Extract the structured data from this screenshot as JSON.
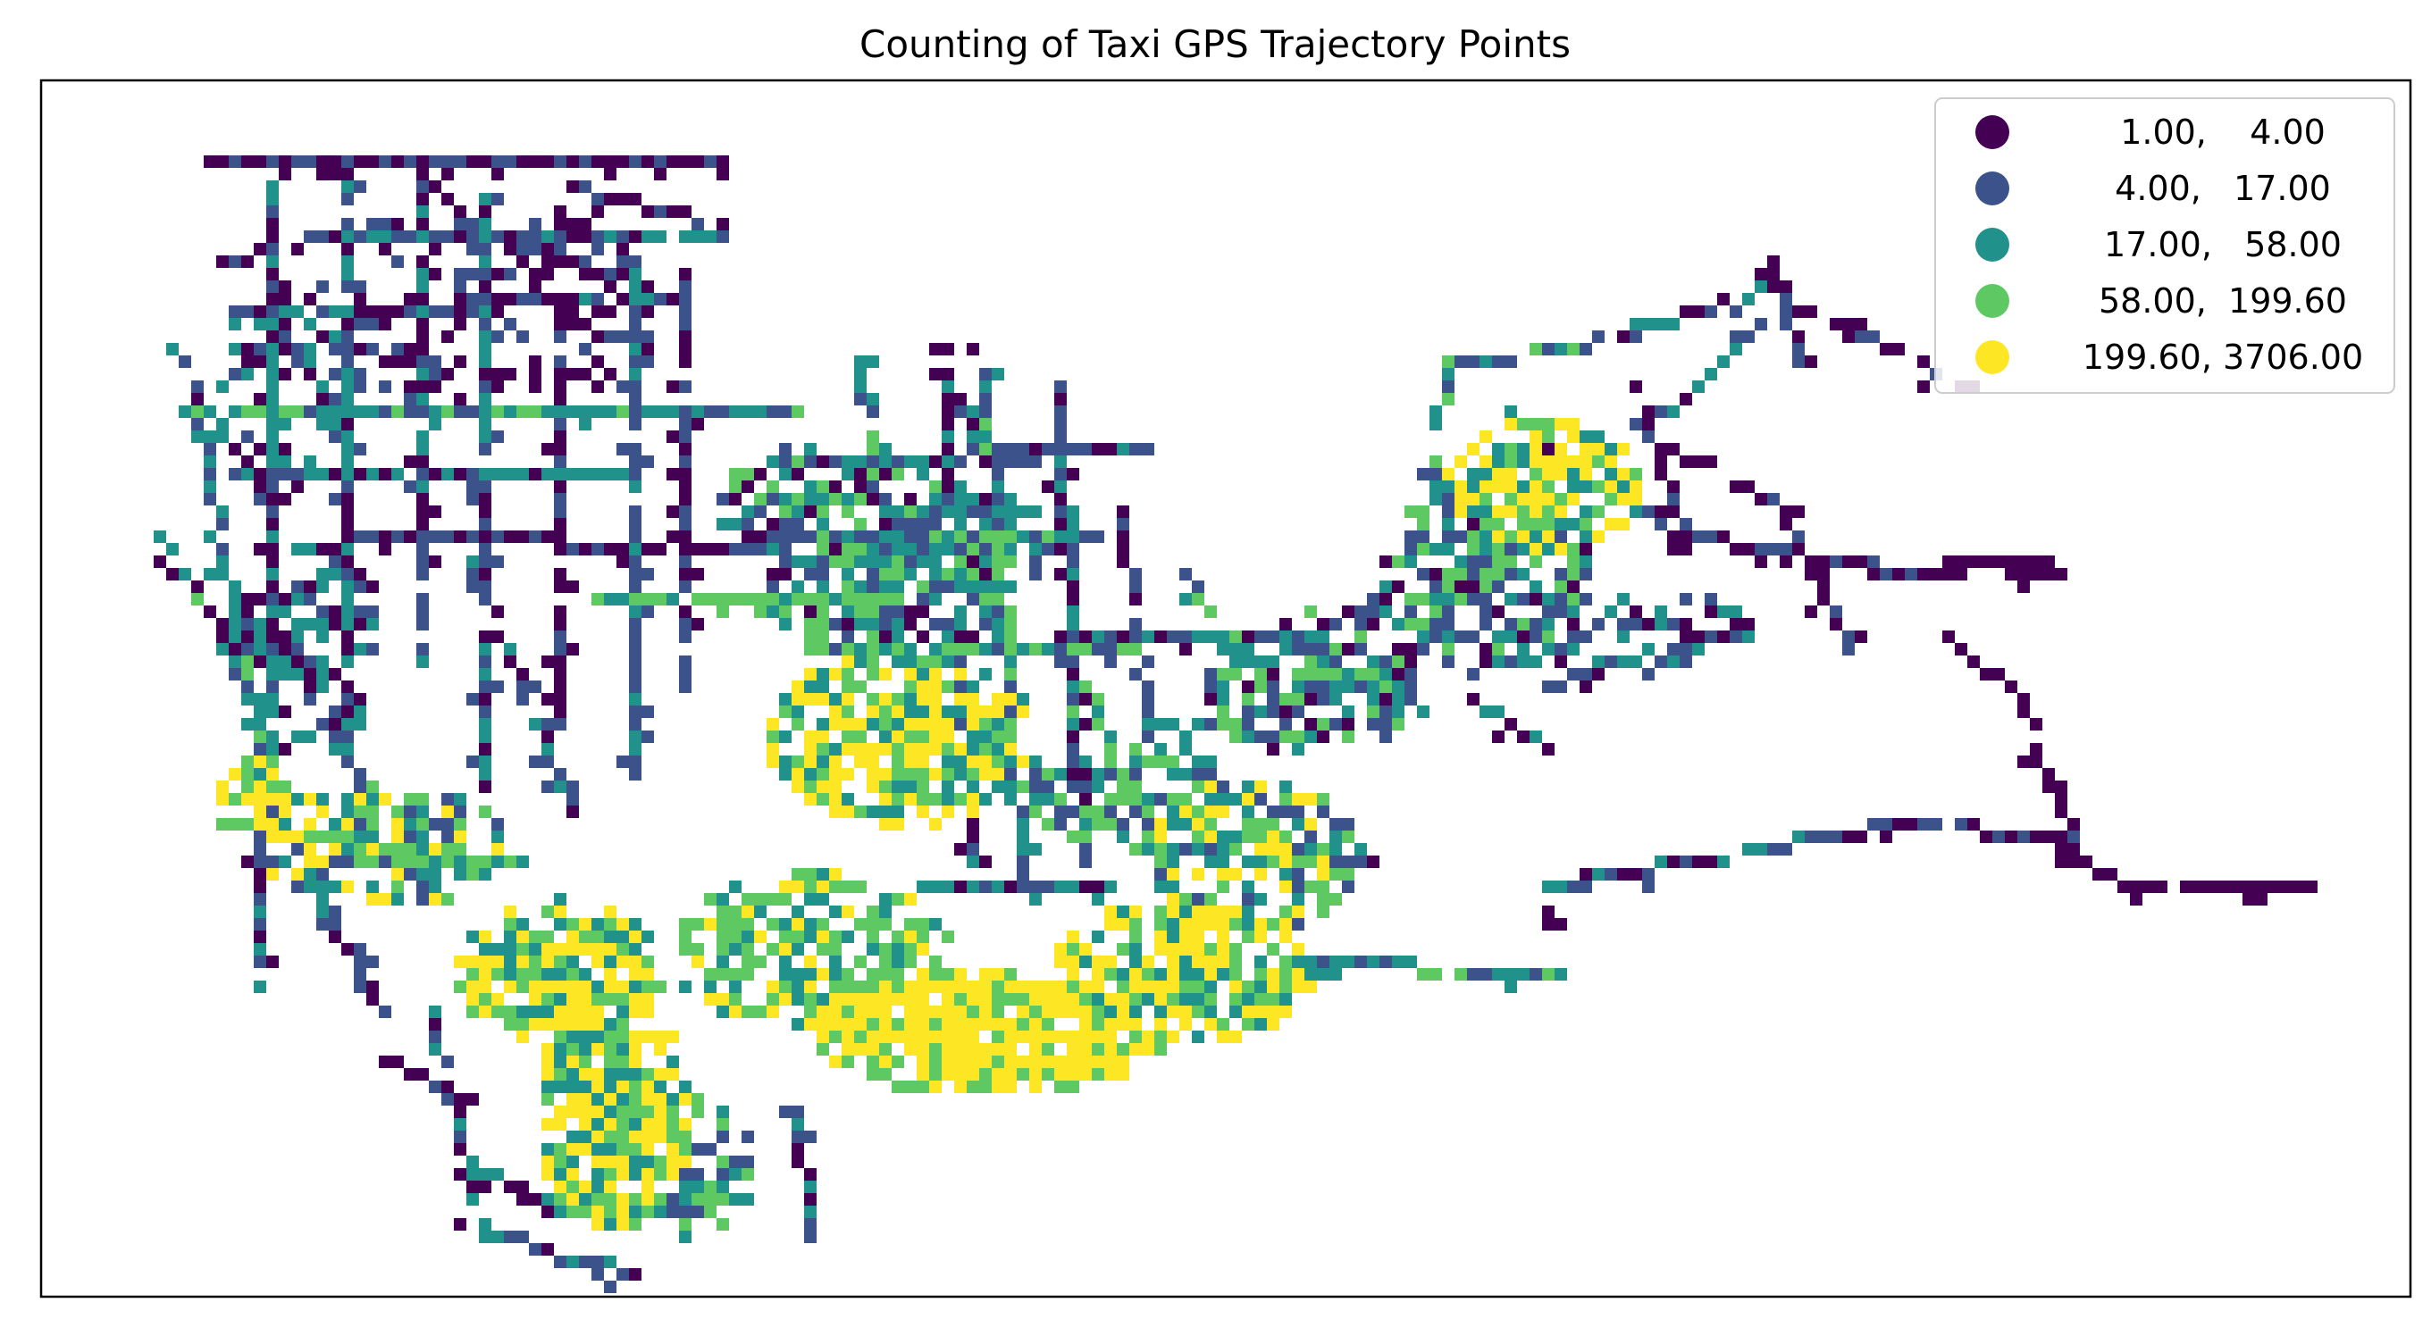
{
  "chart_data": {
    "type": "heatmap",
    "title": "Counting of Taxi GPS Trajectory Points",
    "xlabel": "",
    "ylabel": "",
    "axis_ticks": "none",
    "grid": false,
    "legend_position": "top-right",
    "classification": "quantile bins of point counts per grid cell",
    "colormap": "viridis",
    "legend": [
      {
        "label": "1.00,    4.00",
        "range": [
          1.0,
          4.0
        ],
        "color": "#440154"
      },
      {
        "label": "4.00,   17.00",
        "range": [
          4.0,
          17.0
        ],
        "color": "#3b528b"
      },
      {
        "label": "17.00,   58.00",
        "range": [
          17.0,
          58.0
        ],
        "color": "#21918c"
      },
      {
        "label": "58.00,  199.60",
        "range": [
          58.0,
          199.6
        ],
        "color": "#5ec962"
      },
      {
        "label": "199.60, 3706.00",
        "range": [
          199.6,
          3706.0
        ],
        "color": "#fde725"
      }
    ]
  }
}
